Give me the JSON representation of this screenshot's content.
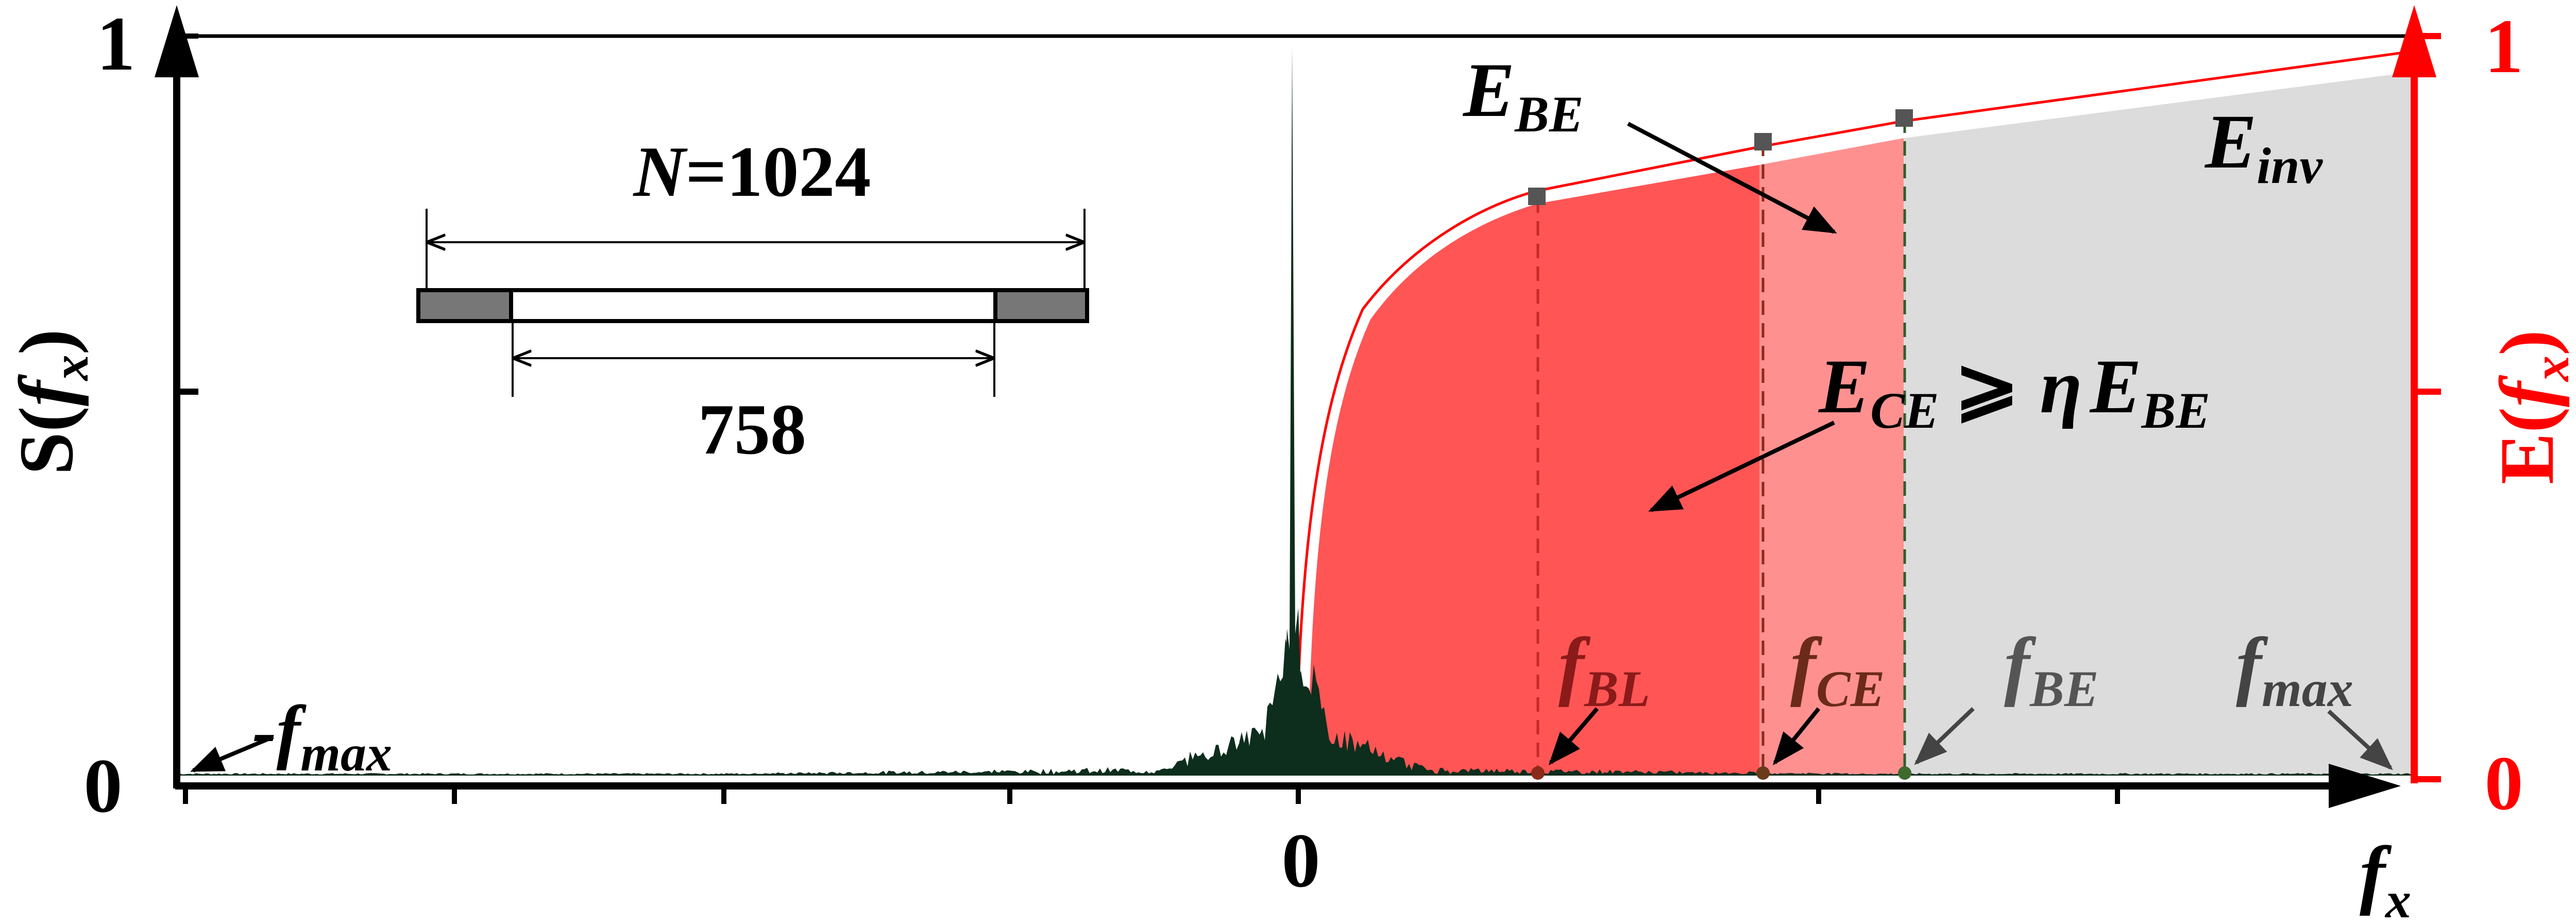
{
  "left_axis": {
    "label_main": "S(",
    "label_var": "f",
    "label_sub": "x",
    "label_close": ")",
    "ticks": [
      "0",
      "1"
    ]
  },
  "right_axis": {
    "label_main": "E(",
    "label_var": "f",
    "label_sub": "x",
    "label_close": ")",
    "ticks": [
      "0",
      "1"
    ],
    "color": "#ff0000"
  },
  "x_axis": {
    "zero_label": "0",
    "label_var": "f",
    "label_sub": "x"
  },
  "annotations": {
    "neg_fmax": {
      "prefix": "-f",
      "sub": "max"
    },
    "f_bl": {
      "main": "f",
      "sub": "BL"
    },
    "f_ce": {
      "main": "f",
      "sub": "CE"
    },
    "f_be": {
      "main": "f",
      "sub": "BE"
    },
    "f_max": {
      "main": "f",
      "sub": "max"
    },
    "e_be": {
      "main": "E",
      "sub": "BE"
    },
    "e_inv": {
      "main": "E",
      "sub": "inv"
    },
    "inequality": {
      "lhs": "E",
      "lhs_sub": "CE",
      "symbol": "⩾",
      "eta": "η",
      "rhs": "E",
      "rhs_sub": "BE"
    }
  },
  "inset": {
    "total": "N=1024",
    "inner": "758"
  },
  "colors": {
    "region_bl": "#ff5555",
    "region_ce": "#ff9090",
    "region_be": "#dcdcdc",
    "spectrum": "#0d2d1d",
    "energy_curve": "#ff0000",
    "marker": "#555555",
    "dashed_bl": "#c62828",
    "dashed_ce": "#8b2a1a",
    "dashed_be": "#2e5d2e"
  }
}
